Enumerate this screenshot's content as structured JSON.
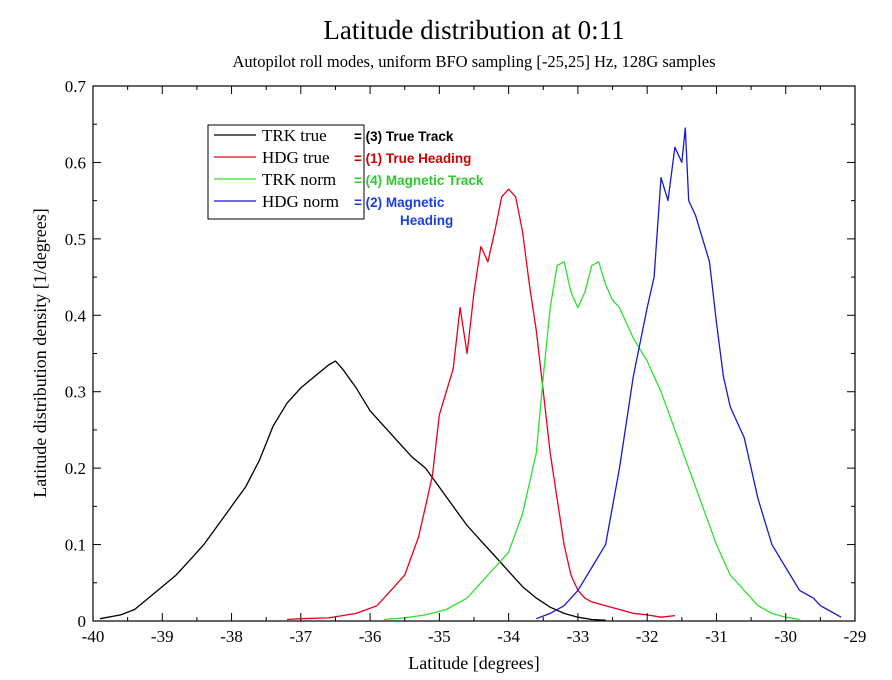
{
  "chart_data": {
    "type": "line",
    "title": "Latitude distribution at 0:11",
    "subtitle": "Autopilot roll modes, uniform BFO sampling [-25,25] Hz, 128G samples",
    "xlabel": "Latitude [degrees]",
    "ylabel": "Latitude distribution density [1/degrees]",
    "xlim": [
      -40,
      -29
    ],
    "ylim": [
      0,
      0.7
    ],
    "x_ticks": [
      "-40",
      "-39",
      "-38",
      "-37",
      "-36",
      "-35",
      "-34",
      "-33",
      "-32",
      "-31",
      "-30",
      "-29"
    ],
    "y_ticks": [
      "0",
      "0.1",
      "0.2",
      "0.3",
      "0.4",
      "0.5",
      "0.6",
      "0.7"
    ],
    "grid": false,
    "legend_position": "top-left",
    "series": [
      {
        "name": "TRK true",
        "annotation": "= (3) True Track",
        "color": "#000000",
        "annotation_color": "#000000",
        "x": [
          -39.9,
          -39.6,
          -39.4,
          -39.2,
          -39.0,
          -38.8,
          -38.6,
          -38.4,
          -38.2,
          -38.0,
          -37.8,
          -37.6,
          -37.4,
          -37.2,
          -37.0,
          -36.8,
          -36.6,
          -36.5,
          -36.4,
          -36.2,
          -36.0,
          -35.8,
          -35.6,
          -35.4,
          -35.2,
          -35.0,
          -34.8,
          -34.6,
          -34.4,
          -34.2,
          -34.0,
          -33.8,
          -33.6,
          -33.4,
          -33.2,
          -33.0,
          -32.8,
          -32.6
        ],
        "y": [
          0.003,
          0.008,
          0.015,
          0.03,
          0.045,
          0.06,
          0.08,
          0.1,
          0.125,
          0.15,
          0.175,
          0.21,
          0.255,
          0.285,
          0.305,
          0.32,
          0.335,
          0.34,
          0.33,
          0.305,
          0.275,
          0.255,
          0.235,
          0.215,
          0.2,
          0.175,
          0.15,
          0.125,
          0.105,
          0.085,
          0.065,
          0.045,
          0.03,
          0.018,
          0.01,
          0.005,
          0.002,
          0.001
        ]
      },
      {
        "name": "HDG true",
        "annotation": "= (1) True Heading",
        "color": "#e8001b",
        "annotation_color": "#d60000",
        "x": [
          -37.2,
          -37.0,
          -36.6,
          -36.2,
          -35.9,
          -35.7,
          -35.5,
          -35.3,
          -35.1,
          -35.0,
          -34.9,
          -34.8,
          -34.7,
          -34.6,
          -34.5,
          -34.4,
          -34.3,
          -34.2,
          -34.1,
          -34.0,
          -33.9,
          -33.8,
          -33.7,
          -33.6,
          -33.5,
          -33.4,
          -33.3,
          -33.2,
          -33.1,
          -33.0,
          -32.9,
          -32.8,
          -32.6,
          -32.4,
          -32.2,
          -32.0,
          -31.8,
          -31.6
        ],
        "y": [
          0.002,
          0.003,
          0.004,
          0.01,
          0.02,
          0.04,
          0.06,
          0.11,
          0.19,
          0.27,
          0.3,
          0.33,
          0.41,
          0.35,
          0.43,
          0.49,
          0.47,
          0.51,
          0.555,
          0.565,
          0.555,
          0.51,
          0.44,
          0.38,
          0.3,
          0.22,
          0.16,
          0.1,
          0.06,
          0.04,
          0.03,
          0.025,
          0.02,
          0.015,
          0.01,
          0.008,
          0.005,
          0.007
        ]
      },
      {
        "name": "TRK norm",
        "annotation": "= (4) Magnetic Track",
        "color": "#2ee02e",
        "annotation_color": "#2cc92c",
        "x": [
          -35.8,
          -35.5,
          -35.2,
          -34.9,
          -34.6,
          -34.4,
          -34.2,
          -34.0,
          -33.8,
          -33.6,
          -33.5,
          -33.4,
          -33.3,
          -33.2,
          -33.1,
          -33.0,
          -32.9,
          -32.8,
          -32.7,
          -32.6,
          -32.5,
          -32.4,
          -32.3,
          -32.2,
          -32.0,
          -31.8,
          -31.6,
          -31.4,
          -31.2,
          -31.0,
          -30.8,
          -30.6,
          -30.4,
          -30.2,
          -30.0,
          -29.8
        ],
        "y": [
          0.002,
          0.004,
          0.008,
          0.015,
          0.03,
          0.05,
          0.07,
          0.09,
          0.14,
          0.22,
          0.32,
          0.41,
          0.465,
          0.47,
          0.43,
          0.41,
          0.43,
          0.465,
          0.47,
          0.44,
          0.42,
          0.41,
          0.39,
          0.37,
          0.34,
          0.3,
          0.25,
          0.2,
          0.15,
          0.1,
          0.06,
          0.04,
          0.02,
          0.01,
          0.005,
          0.002
        ]
      },
      {
        "name": "HDG norm",
        "annotation": "= (2) Magnetic Heading",
        "color": "#1919c8",
        "annotation_color": "#1a3de0",
        "x": [
          -33.6,
          -33.4,
          -33.2,
          -33.0,
          -32.8,
          -32.6,
          -32.4,
          -32.2,
          -32.0,
          -31.9,
          -31.8,
          -31.7,
          -31.6,
          -31.5,
          -31.45,
          -31.4,
          -31.3,
          -31.2,
          -31.1,
          -31.0,
          -30.9,
          -30.8,
          -30.6,
          -30.4,
          -30.2,
          -30.0,
          -29.8,
          -29.6,
          -29.5,
          -29.4,
          -29.2
        ],
        "y": [
          0.003,
          0.01,
          0.02,
          0.04,
          0.07,
          0.1,
          0.2,
          0.32,
          0.41,
          0.45,
          0.58,
          0.55,
          0.62,
          0.6,
          0.645,
          0.55,
          0.53,
          0.5,
          0.47,
          0.39,
          0.32,
          0.28,
          0.24,
          0.16,
          0.1,
          0.07,
          0.04,
          0.03,
          0.02,
          0.015,
          0.005
        ]
      }
    ]
  }
}
